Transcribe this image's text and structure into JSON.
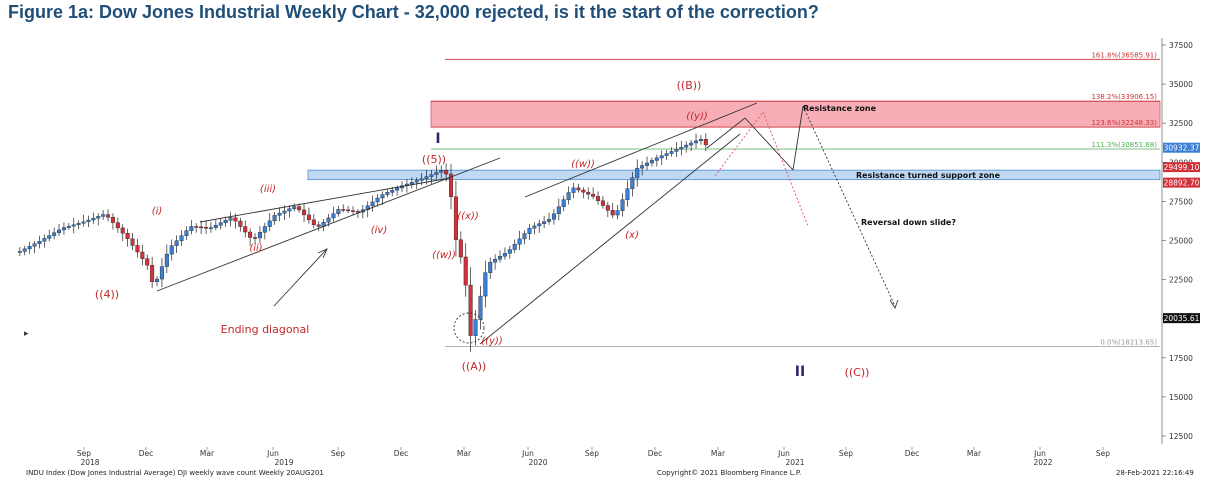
{
  "title": "Figure 1a: Dow Jones Industrial Weekly Chart - 32,000 rejected, is it the start of the correction?",
  "colors": {
    "title": "#1f4e79",
    "up_candle": "#3a7fd5",
    "down_candle": "#d2313a",
    "resistance_zone": "#f7a6b0",
    "support_zone": "#bcd8f5",
    "fib_label": "#cc2222",
    "wave_label": "#c0282d"
  },
  "footer": {
    "left": "INDU Index (Dow Jones Industrial Average) DJI weekly wave count  Weekly 20AUG201",
    "center": "Copyright© 2021 Bloomberg Finance L.P.",
    "right": "28-Feb-2021 22:16:49"
  },
  "chart_data": {
    "type": "candlestick",
    "title": "Figure 1a: Dow Jones Industrial Weekly Chart - 32,000 rejected, is it the start of the correction?",
    "ylim": [
      11500,
      38500
    ],
    "y_ticks": [
      "37500",
      "35000",
      "32500",
      "30000",
      "27500",
      "25000",
      "22500",
      "20000",
      "17500",
      "15000",
      "12500"
    ],
    "x_ticks_month": [
      "Sep",
      "Dec",
      "Mar",
      "Jun",
      "Sep",
      "Dec",
      "Mar",
      "Jun",
      "Sep",
      "Dec",
      "Mar",
      "Jun",
      "Sep",
      "Dec",
      "Mar",
      "Jun",
      "Sep"
    ],
    "x_ticks_year": [
      "2018",
      "2019",
      "2020",
      "2021",
      "2022"
    ],
    "price_path": [
      [
        "2018-06",
        24300
      ],
      [
        "2018-07",
        25000
      ],
      [
        "2018-08",
        25800
      ],
      [
        "2018-09",
        26200
      ],
      [
        "2018-10",
        26700
      ],
      [
        "2018-11",
        25200
      ],
      [
        "2018-12",
        23400
      ],
      [
        "2018-12-24",
        22000
      ],
      [
        "2019-01",
        24500
      ],
      [
        "2019-02",
        25900
      ],
      [
        "2019-03",
        25800
      ],
      [
        "2019-04",
        26500
      ],
      [
        "2019-05",
        25000
      ],
      [
        "2019-06",
        26600
      ],
      [
        "2019-07",
        27200
      ],
      [
        "2019-08",
        25800
      ],
      [
        "2019-09",
        27000
      ],
      [
        "2019-10",
        26800
      ],
      [
        "2019-11",
        27900
      ],
      [
        "2019-12",
        28500
      ],
      [
        "2020-01",
        29000
      ],
      [
        "2020-02-12",
        29550
      ],
      [
        "2020-02-21",
        28900
      ],
      [
        "2020-02-28",
        25400
      ],
      [
        "2020-03-13",
        23200
      ],
      [
        "2020-03-23",
        18600
      ],
      [
        "2020-04",
        23500
      ],
      [
        "2020-05",
        24300
      ],
      [
        "2020-06",
        25800
      ],
      [
        "2020-07",
        26400
      ],
      [
        "2020-08",
        28400
      ],
      [
        "2020-09",
        27800
      ],
      [
        "2020-10",
        26500
      ],
      [
        "2020-11",
        29600
      ],
      [
        "2020-12",
        30300
      ],
      [
        "2021-01",
        30900
      ],
      [
        "2021-02",
        31500
      ],
      [
        "2021-02-26",
        30932
      ]
    ],
    "price_tags": [
      {
        "label": "30932.37",
        "value": 30932.37,
        "color": "#3a7fd5"
      },
      {
        "label": "29499.10",
        "value": 29499.1,
        "color": "#d2313a"
      },
      {
        "label": "28892.70",
        "value": 28892.7,
        "color": "#d2313a"
      },
      {
        "label": "20035.61",
        "value": 20035.61,
        "color": "#111111"
      }
    ],
    "fib_levels": [
      {
        "label": "161.8%(36585.91)",
        "value": 36585.91,
        "color": "#cc3333"
      },
      {
        "label": "138.2%(33906.15)",
        "value": 33906.15,
        "color": "#cc3333"
      },
      {
        "label": "123.6%(32248.33)",
        "value": 32248.33,
        "color": "#cc3333"
      },
      {
        "label": "111.3%(30851.68)",
        "value": 30851.68,
        "color": "#4caf50"
      },
      {
        "label": "0.0%(18213.65)",
        "value": 18213.65,
        "color": "#999999"
      }
    ],
    "zones": [
      {
        "label": "Resistance zone",
        "from": 32248,
        "to": 33906,
        "type": "resistance"
      },
      {
        "label": "Resistance turned support zone",
        "from": 28892,
        "to": 29499,
        "type": "support"
      }
    ],
    "annotations": {
      "wave_labels": [
        "((B))",
        "((y))",
        "I",
        "((5))",
        "((w))",
        "(iii)",
        "(i)",
        "(x)",
        "((w))",
        "(iv)",
        "(ii)",
        "((4))",
        "((x))",
        "((y))",
        "((A))",
        "II",
        "((C))"
      ],
      "notes": [
        "Ending diagonal",
        "Reversal down slide?"
      ]
    }
  }
}
